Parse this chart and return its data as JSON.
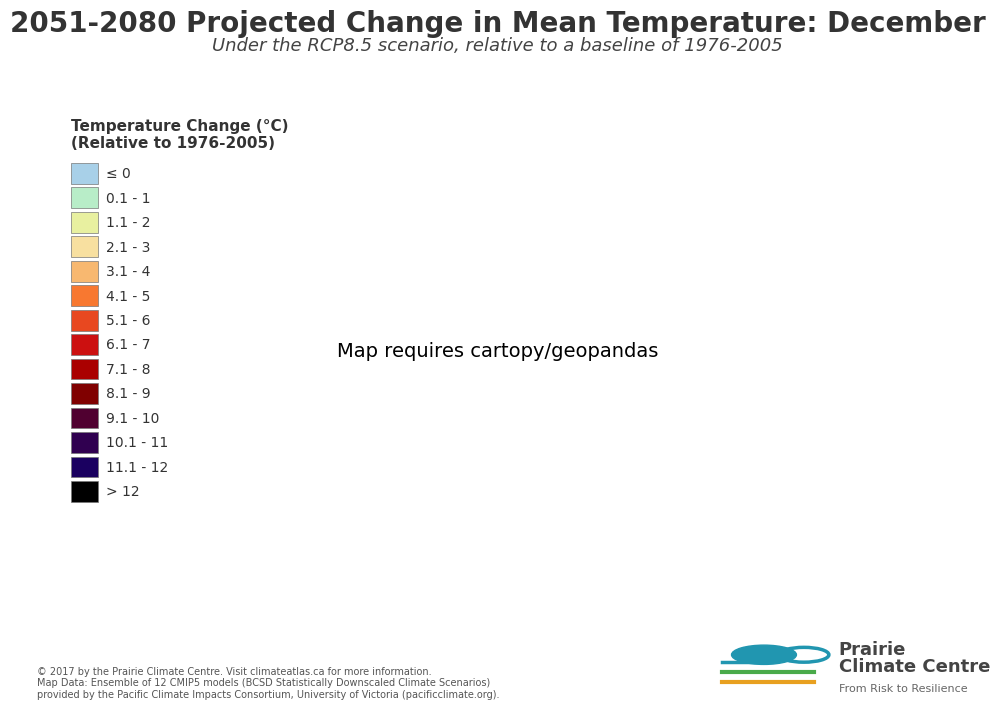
{
  "title": "2051-2080 Projected Change in Mean Temperature: December",
  "subtitle": "Under the RCP8.5 scenario, relative to a baseline of 1976-2005",
  "legend_title": "Temperature Change (°C)\n(Relative to 1976-2005)",
  "legend_labels": [
    "≤ 0",
    "0.1 - 1",
    "1.1 - 2",
    "2.1 - 3",
    "3.1 - 4",
    "4.1 - 5",
    "5.1 - 6",
    "6.1 - 7",
    "7.1 - 8",
    "8.1 - 9",
    "9.1 - 10",
    "10.1 - 11",
    "11.1 - 12",
    "> 12"
  ],
  "legend_colors": [
    "#a8d0e8",
    "#b8edc8",
    "#e8f0a0",
    "#f8e0a0",
    "#f8b870",
    "#f87830",
    "#e84820",
    "#cc1010",
    "#aa0000",
    "#800000",
    "#500030",
    "#300050",
    "#1a0060",
    "#000000"
  ],
  "copyright_text": "© 2017 by the Prairie Climate Centre. Visit climateatlas.ca for more information.\nMap Data: Ensemble of 12 CMIP5 models (BCSD Statistically Downscaled Climate Scenarios)\nprovided by the Pacific Climate Impacts Consortium, University of Victoria (pacificclimate.org).",
  "background_color": "#ffffff",
  "title_fontsize": 20,
  "subtitle_fontsize": 13,
  "legend_title_fontsize": 11,
  "legend_label_fontsize": 10
}
